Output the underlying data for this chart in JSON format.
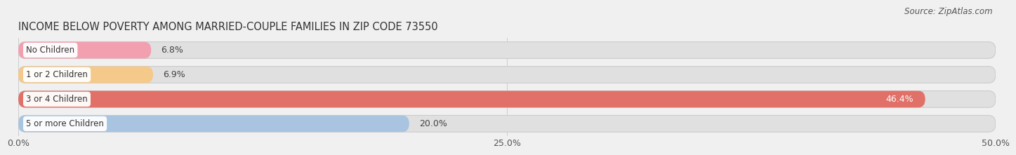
{
  "title": "INCOME BELOW POVERTY AMONG MARRIED-COUPLE FAMILIES IN ZIP CODE 73550",
  "source": "Source: ZipAtlas.com",
  "categories": [
    "No Children",
    "1 or 2 Children",
    "3 or 4 Children",
    "5 or more Children"
  ],
  "values": [
    6.8,
    6.9,
    46.4,
    20.0
  ],
  "bar_colors": [
    "#f2a0b0",
    "#f5c98a",
    "#e07068",
    "#a8c4e0"
  ],
  "bg_color": "#f0f0f0",
  "bar_bg_color": "#e0e0e0",
  "bar_bg_edge_color": "#cccccc",
  "xlim": [
    0,
    50
  ],
  "xticks": [
    0.0,
    25.0,
    50.0
  ],
  "xtick_labels": [
    "0.0%",
    "25.0%",
    "50.0%"
  ],
  "title_fontsize": 10.5,
  "source_fontsize": 8.5,
  "bar_height": 0.68,
  "value_label_inside_idx": 2,
  "value_label_color_inside": "#ffffff",
  "value_label_color_outside": "#444444"
}
